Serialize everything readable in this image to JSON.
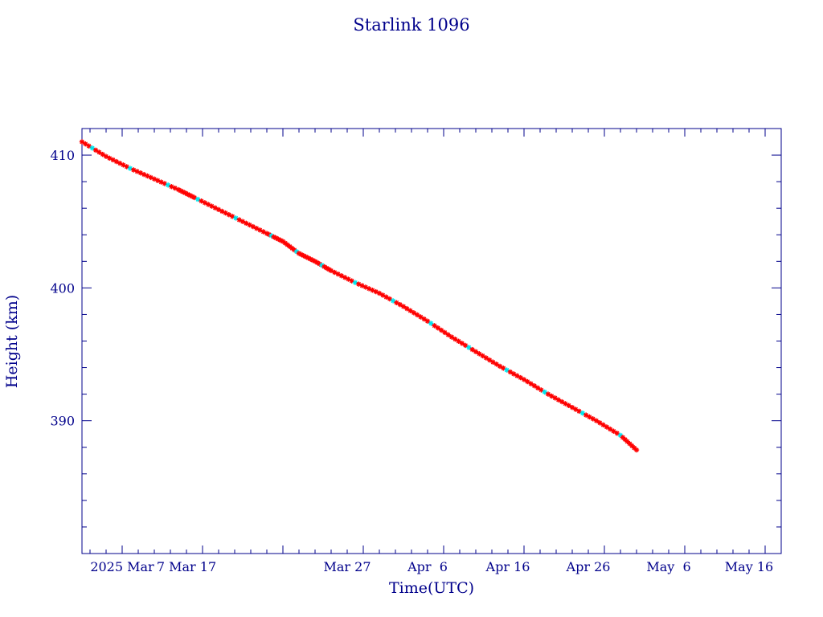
{
  "chart_data": {
    "type": "scatter",
    "title": "Starlink 1096",
    "xlabel": "Time(UTC)",
    "ylabel": "Height (km)",
    "xlim": [
      "2025-02-22",
      "2025-05-20"
    ],
    "ylim": [
      380,
      412
    ],
    "x_tick_labels": [
      {
        "date": "2025-02-27",
        "label": "2025 Mar"
      },
      {
        "date": "2025-03-07",
        "label": "7 Mar 17"
      },
      {
        "date": "2025-03-27",
        "label": "Mar 27"
      },
      {
        "date": "2025-04-06",
        "label": "Apr  6"
      },
      {
        "date": "2025-04-16",
        "label": "Apr 16"
      },
      {
        "date": "2025-04-26",
        "label": "Apr 26"
      },
      {
        "date": "2025-05-06",
        "label": "May  6"
      },
      {
        "date": "2025-05-16",
        "label": "May 16"
      }
    ],
    "y_ticks": [
      390,
      400,
      410
    ],
    "series": [
      {
        "color": "#ff0000",
        "marker": "star",
        "x": [
          "2025-02-22",
          "2025-02-25",
          "2025-02-28",
          "2025-03-03",
          "2025-03-06",
          "2025-03-08",
          "2025-03-11",
          "2025-03-14",
          "2025-03-17",
          "2025-03-19",
          "2025-03-21",
          "2025-03-23",
          "2025-03-25",
          "2025-03-28",
          "2025-03-31",
          "2025-04-03",
          "2025-04-06",
          "2025-04-09",
          "2025-04-12",
          "2025-04-15",
          "2025-04-18",
          "2025-04-21",
          "2025-04-24",
          "2025-04-27",
          "2025-04-30",
          "2025-05-02"
        ],
        "y": [
          411.0,
          409.9,
          409.0,
          408.2,
          407.4,
          406.8,
          405.9,
          405.0,
          404.1,
          403.5,
          402.6,
          402.0,
          401.3,
          400.4,
          399.6,
          398.6,
          397.5,
          396.3,
          395.2,
          394.1,
          393.1,
          392.0,
          391.0,
          390.0,
          388.9,
          387.8
        ]
      }
    ],
    "highlight_color": "#00e5ee",
    "grid": false
  }
}
